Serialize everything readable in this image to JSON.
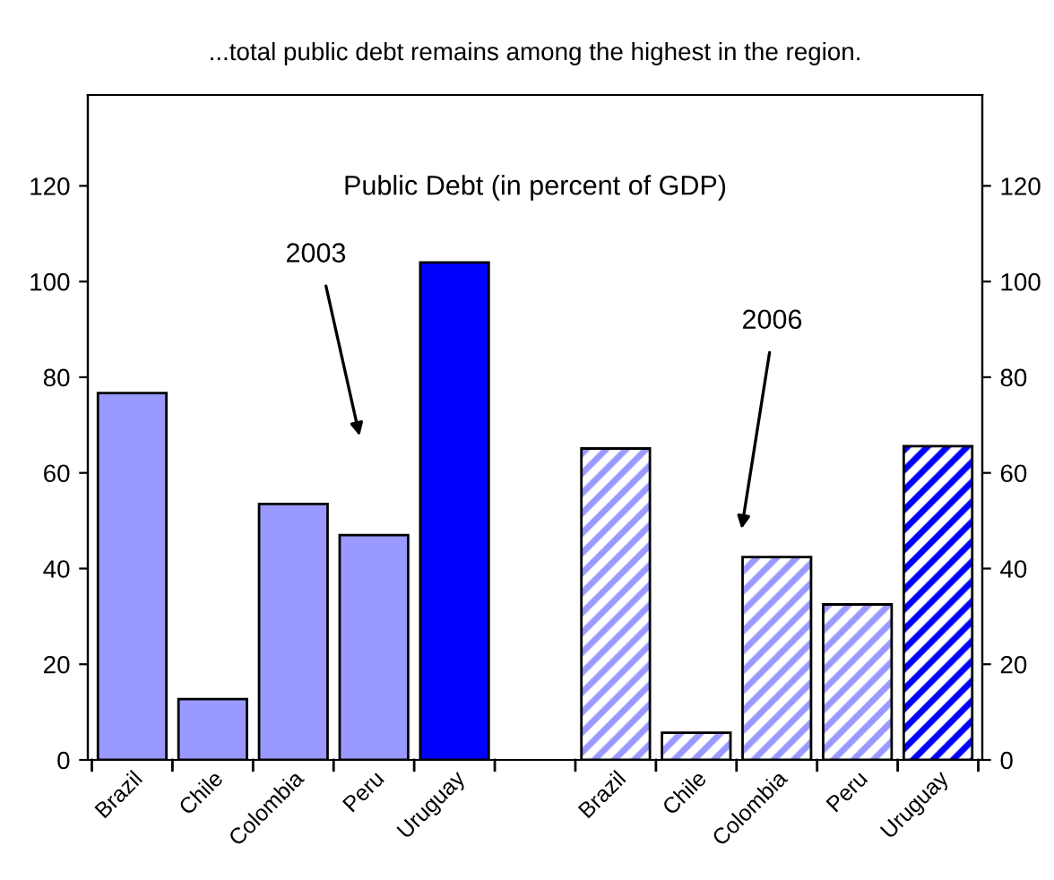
{
  "chart_data": {
    "type": "bar",
    "title": "...total public debt remains among the highest in the region.",
    "subtitle": "Public Debt (in percent of GDP)",
    "categories": [
      "Brazil",
      "Chile",
      "Colombia",
      "Peru",
      "Uruguay",
      null,
      "Brazil",
      "Chile",
      "Colombia",
      "Peru",
      "Uruguay"
    ],
    "series": [
      {
        "colors": [
          "#9999ff",
          "#9999ff",
          "#9999ff",
          "#9999ff",
          "#0000ff",
          null,
          null,
          null,
          null,
          null,
          null
        ],
        "values": [
          76.7,
          12.7,
          53.5,
          47.0,
          104,
          null,
          null,
          null,
          null,
          null,
          null
        ]
      },
      {
        "colors": [
          null,
          null,
          null,
          null,
          null,
          null,
          "#9999ff",
          "#9999ff",
          "#9999ff",
          "#9999ff",
          "#0000ff"
        ],
        "values": [
          null,
          null,
          null,
          null,
          null,
          null,
          65.1,
          5.7,
          42.4,
          32.5,
          65.6
        ]
      }
    ],
    "annotations": [
      "2003",
      "2006"
    ],
    "ylim": [
      0,
      139
    ],
    "yticks": [
      0,
      20,
      40,
      60,
      80,
      100,
      120
    ],
    "y2lim": [
      0,
      139
    ],
    "y2ticks": [
      0,
      20,
      40,
      60,
      80,
      100,
      120
    ],
    "grid": false,
    "legend": false
  }
}
